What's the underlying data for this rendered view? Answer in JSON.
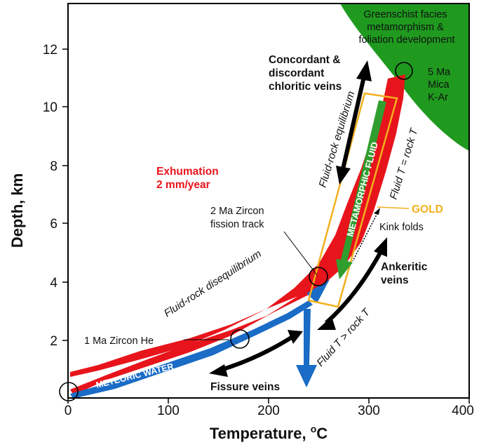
{
  "colors": {
    "green_zone": "#1f9a1f",
    "exhumation_band": "#e8141b",
    "meteoric_water": "#1a6cc6",
    "gold_box": "#f2b01e",
    "metamorphic_fluid": "#2f9e2f",
    "arrows": "#000000"
  },
  "axes": {
    "x_title": "Temperature, ",
    "x_title_sup": "o",
    "x_title_unit": "C",
    "y_title": "Depth, km",
    "x_ticks": [
      "0",
      "100",
      "200",
      "300",
      "400"
    ],
    "y_ticks": [
      "2",
      "4",
      "6",
      "8",
      "10",
      "12"
    ]
  },
  "labels": {
    "greenschist": [
      "Greenschist facies",
      "metamorphism &",
      "foliation development"
    ],
    "mica": [
      "5 Ma",
      "Mica",
      "K-Ar"
    ],
    "concordant": [
      "Concordant &",
      "discordant",
      "chloritic veins"
    ],
    "exhumation": [
      "Exhumation",
      "2 mm/year"
    ],
    "fluid_rock_eq": "Fluid-rock equilibrium",
    "metamorphic_fluid": "METAMORPHIC FLUID",
    "fluid_t_eq": "Fluid T = rock T",
    "gold": "GOLD",
    "kink_folds": "Kink folds",
    "zircon_ft": [
      "2 Ma Zircon",
      "fission track"
    ],
    "ankeritic": [
      "Ankeritic",
      "veins"
    ],
    "fluid_rock_diseq": "Fluid-rock disequilibrium",
    "fluid_t_gt": "Fluid T > rock T",
    "zircon_he": "1 Ma Zircon He",
    "meteoric_water": "METEORIC WATER",
    "fissure_veins": "Fissure veins"
  }
}
